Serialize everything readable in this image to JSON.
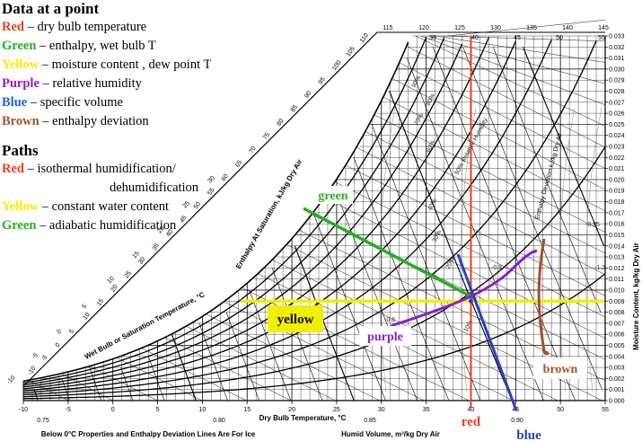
{
  "legend": {
    "heading1": "Data at a point",
    "items": [
      {
        "color_name": "Red",
        "color": "#e8401c",
        "text": " – dry  bulb temperature"
      },
      {
        "color_name": "Green",
        "color": "#22b022",
        "text": " – enthalpy,  wet bulb T"
      },
      {
        "color_name": "Yellow",
        "color": "#f2ee00",
        "text": " – moisture content , dew point T"
      },
      {
        "color_name": "Purple",
        "color": "#8b1fc4",
        "text": " – relative humidity"
      },
      {
        "color_name": "Blue",
        "color": "#1e5fd6",
        "text": " – specific volume"
      },
      {
        "color_name": "Brown",
        "color": "#a0522d",
        "text": " – enthalpy  deviation"
      }
    ],
    "heading2": "Paths",
    "paths": [
      {
        "color_name": "Red",
        "color": "#e8401c",
        "text": " – isothermal humidification/",
        "cont": "dehumidification"
      },
      {
        "color_name": "Yellow",
        "color": "#f2ee00",
        "text": " – constant water content"
      },
      {
        "color_name": "Green",
        "color": "#22b022",
        "text": " – adiabatic humidification"
      }
    ]
  },
  "chart": {
    "x_axis_title": "Dry Bulb Temperature, °C",
    "x_ticks": [
      "-10",
      "-5",
      "0",
      "5",
      "10",
      "15",
      "20",
      "25",
      "30",
      "35",
      "40",
      "45",
      "50",
      "55"
    ],
    "y_axis_title": "Moisture Content, kg/kg Dry Air",
    "y_ticks": [
      "0.000",
      "0.001",
      "0.002",
      "0.003",
      "0.004",
      "0.005",
      "0.006",
      "0.007",
      "0.008",
      "0.009",
      "0.010",
      "0.011",
      "0.012",
      "0.013",
      "0.014",
      "0.015",
      "0.016",
      "0.017",
      "0.018",
      "0.019",
      "0.020",
      "0.021",
      "0.022",
      "0.023",
      "0.024",
      "0.025",
      "0.026",
      "0.027",
      "0.028",
      "0.029",
      "0.030",
      "0.031",
      "0.032",
      "0.033"
    ],
    "top_enthalpy_ticks": [
      "115",
      "120",
      "125",
      "130",
      "135",
      "140",
      "145"
    ],
    "top_ticks_inner": [
      "35",
      "40",
      "45",
      "50",
      "55"
    ],
    "saturation_axis_title": "Enthalpy At Saturation, kJ/kg Dry Air",
    "saturation_ticks": [
      "-10",
      "-5",
      "0",
      "5",
      "10",
      "15",
      "20",
      "25",
      "30",
      "35",
      "40",
      "45",
      "50",
      "55",
      "60",
      "65",
      "70",
      "75",
      "80",
      "85",
      "90",
      "95",
      "100",
      "105",
      "110"
    ],
    "wetbulb_axis_title": "Wet Bulb or Saturation Temperature, °C",
    "wetbulb_ticks": [
      "-10",
      "-5",
      "0",
      "5",
      "10",
      "15",
      "20",
      "25",
      "30"
    ],
    "volume_axis_title": "Humid Volume, m³/kg Dry Air",
    "volume_ticks": [
      "0.75",
      "0.80",
      "0.85",
      "0.90"
    ],
    "deviation_axis_title": "Enthalpy Deviation kJ/kg Dry Air",
    "footnote": "Below 0°C Properties and Enthalpy Deviation Lines Are For Ice",
    "rh_labels": [
      "90%",
      "80%",
      "70%",
      "60%",
      "50% Relative Humidity",
      "40%",
      "30%",
      "20%",
      "10%"
    ],
    "deviation_labels": [
      "-0.95",
      "-1.2",
      "-0.6",
      "-0.8"
    ],
    "callouts": {
      "green": "green",
      "yellow": "yellow",
      "purple": "purple",
      "brown": "brown",
      "red": "red",
      "blue": "blue"
    },
    "colors": {
      "red": "#e8401c",
      "green": "#22b022",
      "yellow": "#f2ee00",
      "purple": "#8b1fc4",
      "blue": "#2a3fc4",
      "brown": "#a0522d"
    }
  }
}
